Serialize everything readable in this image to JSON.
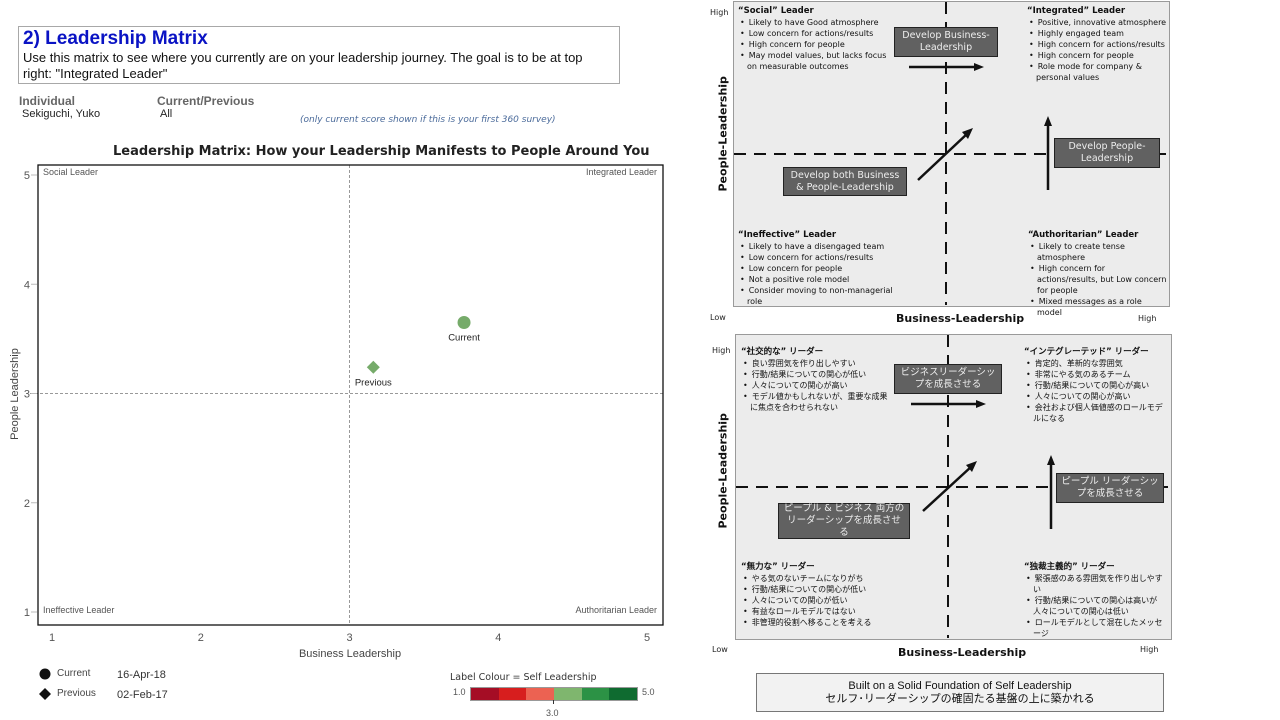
{
  "header": {
    "title": "2) Leadership Matrix",
    "description": "Use this matrix to see where you currently are on your leadership journey. The goal is to be at top right: \"Integrated Leader\""
  },
  "filters": {
    "individual_label": "Individual",
    "individual_value": "Sekiguchi, Yuko",
    "period_label": "Current/Previous",
    "period_value": "All",
    "note": "(only current score shown if this is your first 360 survey)"
  },
  "chart_data": {
    "type": "scatter",
    "title": "Leadership Matrix: How your Leadership Manifests to People Around You",
    "xlabel": "Business Leadership",
    "ylabel": "People Leadership",
    "xlim": [
      1,
      5
    ],
    "ylim": [
      1,
      5
    ],
    "xticks": [
      "1",
      "2",
      "3",
      "4",
      "5"
    ],
    "yticks": [
      "1",
      "2",
      "3",
      "4",
      "5"
    ],
    "reference_lines": {
      "x": 3,
      "y": 3
    },
    "quadrant_labels": {
      "top_left": "Social Leader",
      "top_right": "Integrated Leader",
      "bottom_left": "Ineffective Leader",
      "bottom_right": "Authoritarian Leader"
    },
    "points": [
      {
        "name": "Current",
        "label": "Current",
        "x": 3.77,
        "y": 3.65,
        "shape": "circle",
        "color": "#76ab6a"
      },
      {
        "name": "Previous",
        "label": "Previous",
        "x": 3.16,
        "y": 3.24,
        "shape": "diamond",
        "color": "#76ab6a"
      }
    ],
    "legend": [
      {
        "shape": "circle",
        "label": "Current",
        "date": "16-Apr-18"
      },
      {
        "shape": "diamond",
        "label": "Previous",
        "date": "02-Feb-17"
      }
    ],
    "colour_scale": {
      "title": "Label Colour = Self Leadership",
      "min_label": "1.0",
      "max_label": "5.0",
      "mid_label": "3.0",
      "colors": [
        "#a50d25",
        "#d71e1e",
        "#ec6252",
        "#7fb66e",
        "#2c9245",
        "#0f6b30"
      ]
    }
  },
  "diagram_en": {
    "high": "High",
    "low": "Low",
    "high_x": "High",
    "x_axis": "Business-Leadership",
    "y_axis": "People-Leadership",
    "q_social": {
      "title": "“Social” Leader",
      "items": [
        "Likely to have Good atmosphere",
        "Low concern for actions/results",
        "High concern for people",
        "May model values, but lacks focus on measurable outcomes"
      ]
    },
    "q_integrated": {
      "title": "“Integrated” Leader",
      "items": [
        "Positive, innovative atmosphere",
        "Highly engaged team",
        "High concern for actions/results",
        "High concern for people",
        "Role mode for company & personal values"
      ]
    },
    "q_ineffective": {
      "title": "“Ineffective” Leader",
      "items": [
        "Likely to have a disengaged team",
        "Low concern for actions/results",
        "Low concern for people",
        "Not a positive role model",
        "Consider moving to non-managerial role"
      ]
    },
    "q_authoritarian": {
      "title": "“Authoritarian” Leader",
      "items": [
        "Likely to create tense atmosphere",
        "High concern for actions/results, but Low concern for people",
        "Mixed messages as a role model"
      ]
    },
    "box_business": "Develop Business-Leadership",
    "box_people": "Develop People-Leadership",
    "box_both": "Develop both Business & People-Leadership"
  },
  "diagram_jp": {
    "high": "High",
    "low": "Low",
    "high_x": "High",
    "x_axis": "Business-Leadership",
    "y_axis": "People-Leadership",
    "q_social": {
      "title": "“社交的な” リーダー",
      "items": [
        "良い雰囲気を作り出しやすい",
        "行動/結果についての関心が低い",
        "人々についての関心が高い",
        "モデル値かもしれないが、重要な成果に焦点を合わせられない"
      ]
    },
    "q_integrated": {
      "title": "“インテグレーテッド” リーダー",
      "items": [
        "肯定的、革新的な雰囲気",
        "非常にやる気のあるチーム",
        "行動/結果についての関心が高い",
        "人々についての関心が高い",
        "会社および個人価値感のロールモデルになる"
      ]
    },
    "q_ineffective": {
      "title": "“無力な” リーダー",
      "items": [
        "やる気のないチームになりがち",
        "行動/結果についての関心が低い",
        "人々についての関心が低い",
        "有益なロールモデルではない",
        "非管理的役割へ移ることを考える"
      ]
    },
    "q_authoritarian": {
      "title": "“独裁主義的” リーダー",
      "items": [
        "緊張感のある雰囲気を作り出しやすい",
        "行動/結果についての関心は高いが人々についての関心は低い",
        "ロールモデルとして混在したメッセージ"
      ]
    },
    "box_business": "ビジネスリーダーシップを成長させる",
    "box_people": "ピープル リーダーシップを成長させる",
    "box_both": "ピープル & ビジネス 両方のリーダーシップを成長させる"
  },
  "footer": {
    "line1": "Built on a Solid Foundation of Self Leadership",
    "line2": "セルフ･リーダーシップの確固たる基盤の上に築かれる"
  }
}
